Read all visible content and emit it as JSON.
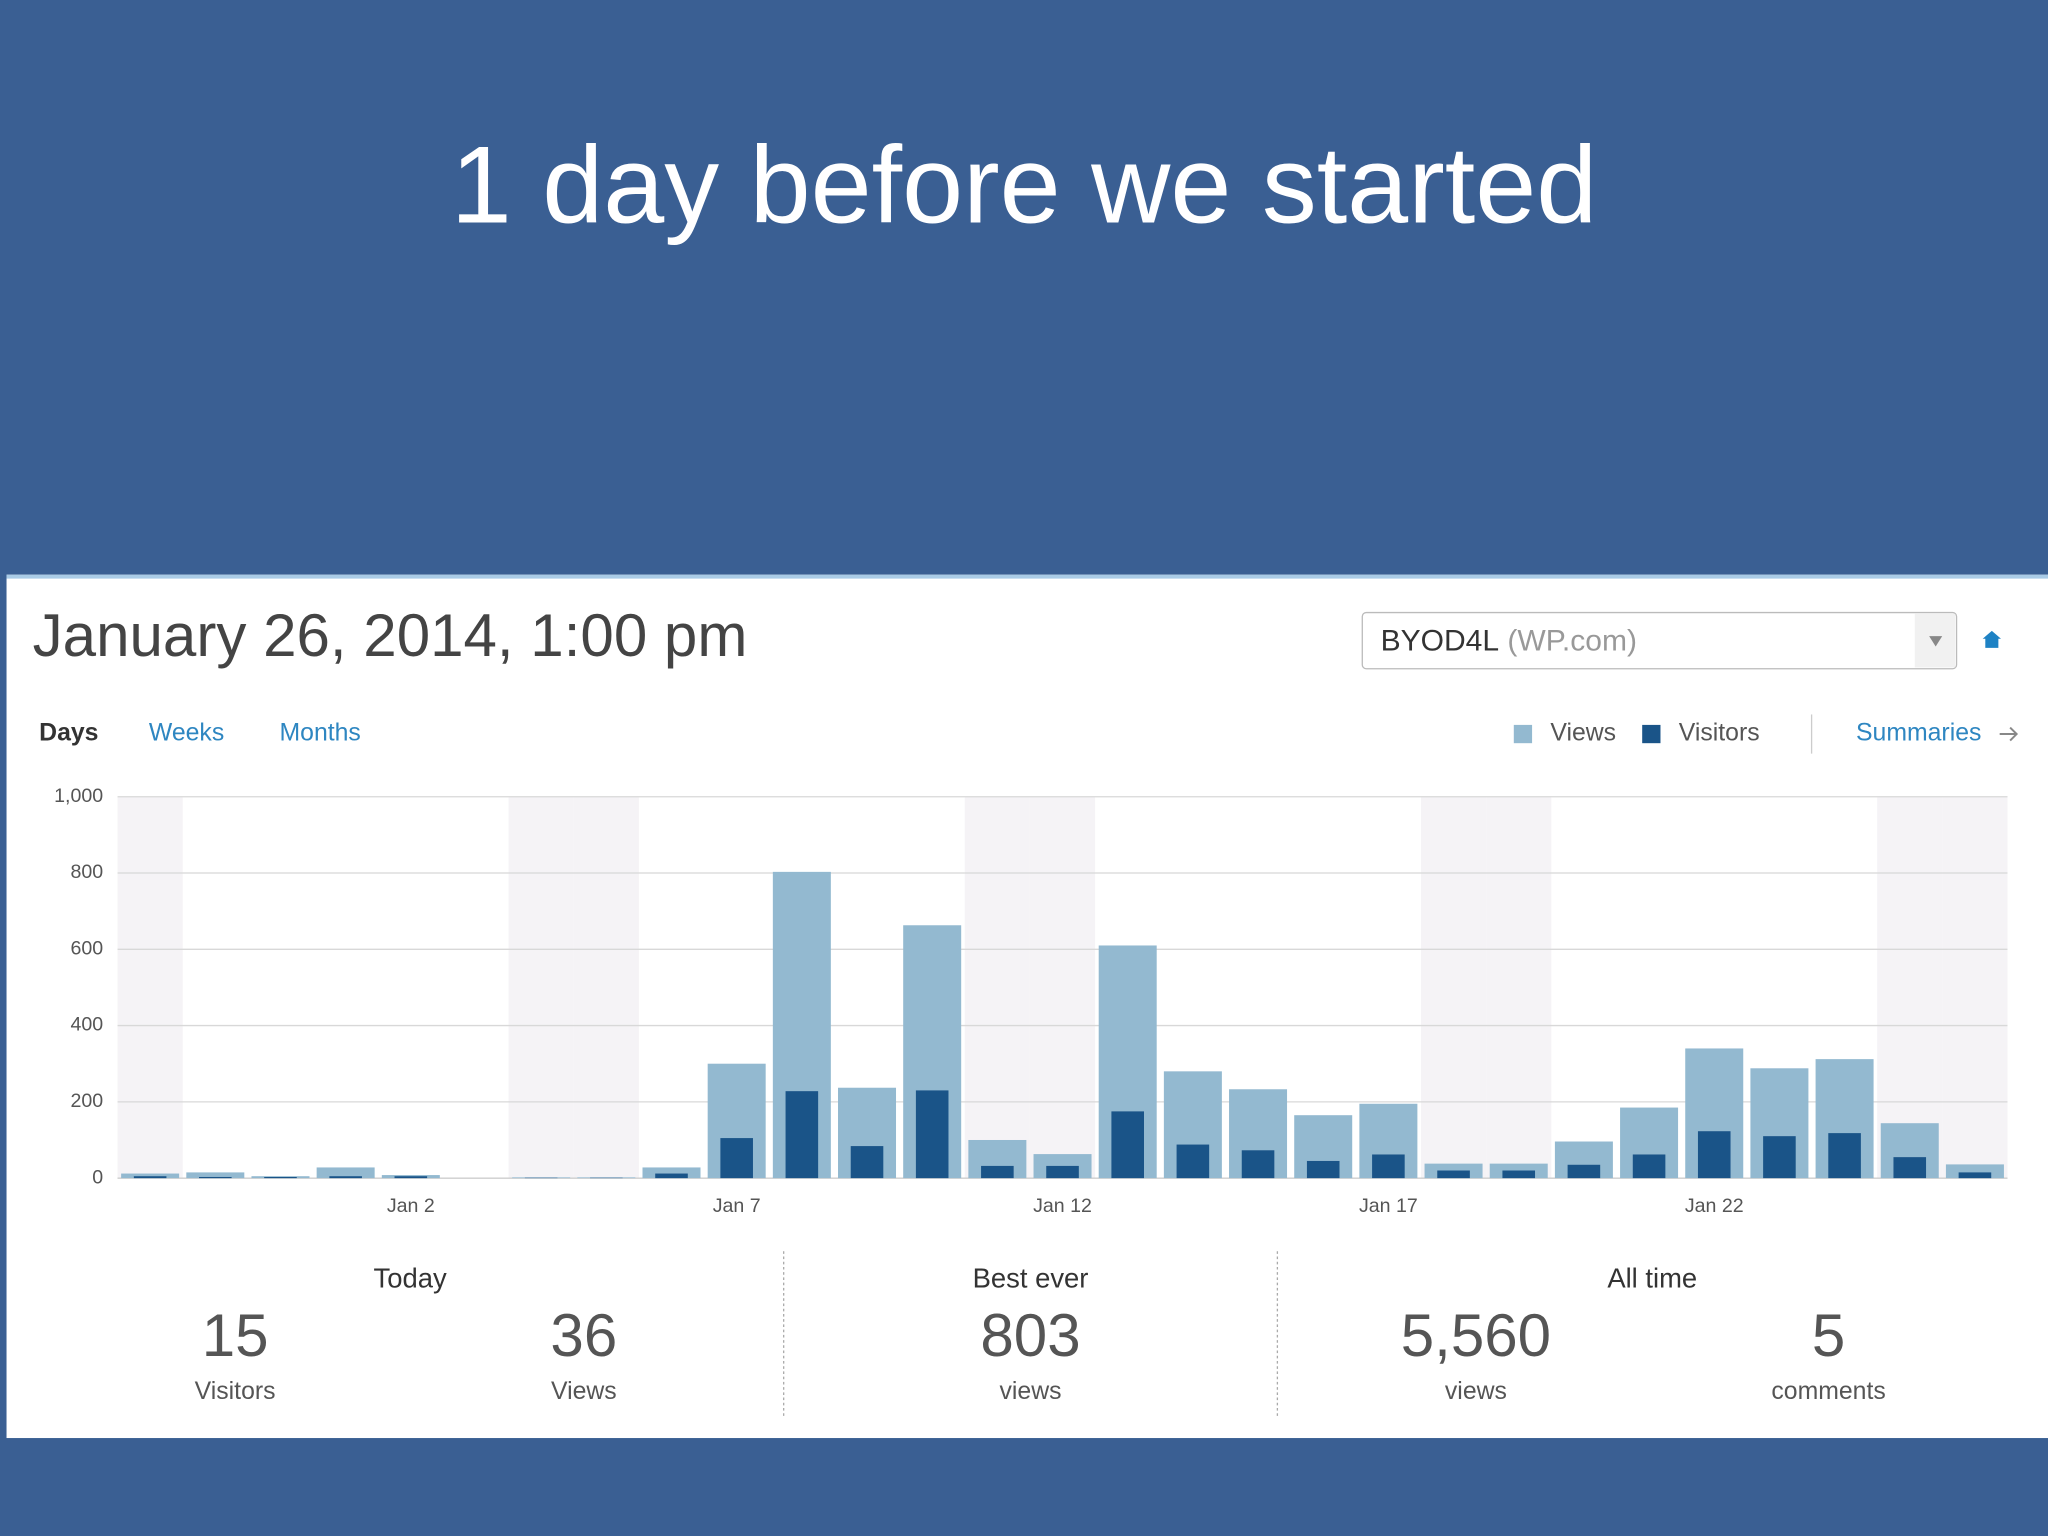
{
  "slide_title": "1 day before we started",
  "header": {
    "date": "January 26, 2014, 1:00 pm",
    "site": "BYOD4L",
    "site_suffix": "(WP.com)"
  },
  "tabs": [
    "Days",
    "Weeks",
    "Months"
  ],
  "summaries_link": "Summaries",
  "chart_data": {
    "type": "bar",
    "categories": [
      null,
      null,
      null,
      null,
      "Jan 2",
      null,
      null,
      null,
      null,
      "Jan 7",
      null,
      null,
      null,
      null,
      "Jan 12",
      null,
      null,
      null,
      null,
      "Jan 17",
      null,
      null,
      null,
      null,
      "Jan 22",
      null,
      null,
      null,
      null
    ],
    "series": [
      {
        "name": "Views",
        "color": "#93b9d0",
        "values": [
          12,
          15,
          5,
          28,
          8,
          0,
          2,
          2,
          28,
          300,
          803,
          237,
          663,
          100,
          63,
          610,
          280,
          233,
          165,
          195,
          38,
          38,
          96,
          185,
          340,
          288,
          312,
          144,
          36
        ]
      },
      {
        "name": "Visitors",
        "color": "#1a5488",
        "values": [
          5,
          3,
          3,
          5,
          5,
          0,
          1,
          1,
          12,
          105,
          228,
          84,
          230,
          32,
          32,
          175,
          88,
          73,
          45,
          62,
          20,
          20,
          35,
          62,
          123,
          110,
          118,
          55,
          15
        ]
      }
    ],
    "overlap": true,
    "shaded_categories": [
      0,
      6,
      7,
      13,
      14,
      20,
      21,
      27,
      28
    ],
    "ylim": [
      0,
      1000
    ],
    "yticks": [
      0,
      200,
      400,
      600,
      800,
      {
        "value": 1000,
        "label": "1,000"
      }
    ],
    "grid": true,
    "legend": "top-right"
  },
  "stats": {
    "today": {
      "label": "Today",
      "items": [
        {
          "value": "15",
          "label": "Visitors"
        },
        {
          "value": "36",
          "label": "Views"
        }
      ]
    },
    "best_ever": {
      "label": "Best ever",
      "items": [
        {
          "value": "803",
          "label": "views"
        }
      ]
    },
    "all_time": {
      "label": "All time",
      "items": [
        {
          "value": "5,560",
          "label": "views"
        },
        {
          "value": "5",
          "label": "comments"
        }
      ]
    }
  }
}
